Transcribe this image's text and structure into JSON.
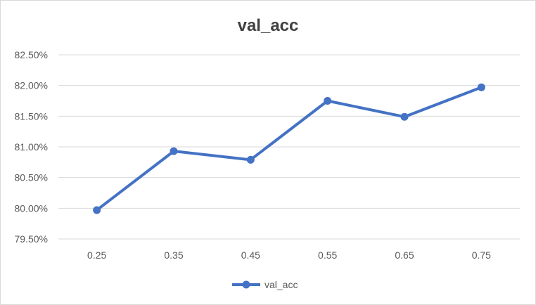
{
  "chart_data": {
    "type": "line",
    "title": "val_acc",
    "xlabel": "",
    "ylabel": "",
    "categories": [
      "0.25",
      "0.35",
      "0.45",
      "0.55",
      "0.65",
      "0.75"
    ],
    "series": [
      {
        "name": "val_acc",
        "values": [
          79.97,
          80.93,
          80.79,
          81.75,
          81.49,
          81.97
        ]
      }
    ],
    "ylim": [
      79.5,
      82.5
    ],
    "ytick_labels": [
      "79.50%",
      "80.00%",
      "80.50%",
      "81.00%",
      "81.50%",
      "82.00%",
      "82.50%"
    ],
    "grid": true,
    "legend": "bottom",
    "colors": {
      "series": "#4472c4",
      "grid": "#d9d9d9",
      "text": "#595959",
      "title": "#404040"
    }
  }
}
